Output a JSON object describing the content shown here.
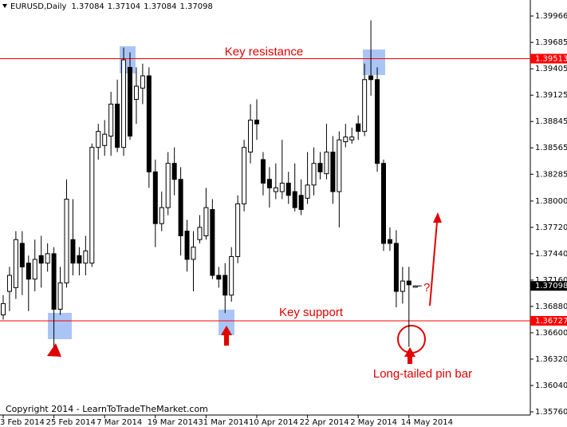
{
  "chart_data": {
    "type": "candlestick",
    "symbol": "EURUSD,Daily",
    "categories": [
      "3 Feb 2014",
      null,
      null,
      null,
      null,
      null,
      null,
      null,
      "25 Feb 2014",
      null,
      null,
      null,
      null,
      null,
      null,
      null,
      "7 Mar 2014",
      null,
      null,
      null,
      null,
      null,
      null,
      null,
      "19 Mar 2014",
      null,
      null,
      null,
      null,
      null,
      null,
      null,
      "31 Mar 2014",
      null,
      null,
      null,
      null,
      null,
      null,
      null,
      "10 Apr 2014",
      null,
      null,
      null,
      null,
      null,
      null,
      null,
      "22 Apr 2014",
      null,
      null,
      null,
      null,
      null,
      null,
      null,
      "2 May 2014",
      null,
      null,
      null,
      null,
      null,
      null,
      null,
      "14 May 2014",
      null
    ],
    "ohlc": [
      [
        1.3679,
        1.37,
        1.3674,
        1.3691
      ],
      [
        1.3704,
        1.373,
        1.3683,
        1.3721
      ],
      [
        1.3708,
        1.3768,
        1.3696,
        1.3759
      ],
      [
        1.3755,
        1.3768,
        1.37,
        1.373
      ],
      [
        1.3734,
        1.3742,
        1.3683,
        1.3717
      ],
      [
        1.3717,
        1.3759,
        1.3704,
        1.3738
      ],
      [
        1.3742,
        1.3763,
        1.3708,
        1.3734
      ],
      [
        1.3734,
        1.3755,
        1.3725,
        1.3744
      ],
      [
        1.3744,
        1.3751,
        1.3645,
        1.3685
      ],
      [
        1.3685,
        1.373,
        1.3679,
        1.3713
      ],
      [
        1.3713,
        1.3823,
        1.3708,
        1.3802
      ],
      [
        1.3759,
        1.3802,
        1.3721,
        1.3734
      ],
      [
        1.3742,
        1.3751,
        1.3721,
        1.3734
      ],
      [
        1.3734,
        1.3763,
        1.3721,
        1.3747
      ],
      [
        1.3734,
        1.3861,
        1.373,
        1.3857
      ],
      [
        1.3857,
        1.3882,
        1.3844,
        1.3874
      ],
      [
        1.3859,
        1.3886,
        1.3848,
        1.3871
      ],
      [
        1.3869,
        1.3916,
        1.3848,
        1.3903
      ],
      [
        1.3903,
        1.3929,
        1.3852,
        1.3857
      ],
      [
        1.3857,
        1.3963,
        1.3848,
        1.395
      ],
      [
        1.3942,
        1.3958,
        1.3865,
        1.3869
      ],
      [
        1.3908,
        1.3942,
        1.3882,
        1.3922
      ],
      [
        1.392,
        1.3946,
        1.3903,
        1.3933
      ],
      [
        1.3933,
        1.3942,
        1.3814,
        1.3831
      ],
      [
        1.3831,
        1.3844,
        1.3751,
        1.3776
      ],
      [
        1.3776,
        1.381,
        1.3768,
        1.3793
      ],
      [
        1.3793,
        1.3852,
        1.3785,
        1.384
      ],
      [
        1.384,
        1.3857,
        1.3806,
        1.3823
      ],
      [
        1.3823,
        1.3836,
        1.3742,
        1.3763
      ],
      [
        1.3768,
        1.378,
        1.3725,
        1.3738
      ],
      [
        1.3738,
        1.3768,
        1.3704,
        1.3751
      ],
      [
        1.3759,
        1.3785,
        1.3755,
        1.3772
      ],
      [
        1.3763,
        1.3814,
        1.3759,
        1.3793
      ],
      [
        1.3791,
        1.3802,
        1.3717,
        1.3721
      ],
      [
        1.3721,
        1.373,
        1.3708,
        1.3717
      ],
      [
        1.3721,
        1.3734,
        1.3681,
        1.37
      ],
      [
        1.37,
        1.3751,
        1.3693,
        1.3741
      ],
      [
        1.3741,
        1.3806,
        1.3734,
        1.3797
      ],
      [
        1.3797,
        1.3865,
        1.3789,
        1.3857
      ],
      [
        1.3852,
        1.3903,
        1.384,
        1.3886
      ],
      [
        1.3886,
        1.3908,
        1.3865,
        1.3882
      ],
      [
        1.3844,
        1.3852,
        1.3806,
        1.3819
      ],
      [
        1.3823,
        1.3836,
        1.3793,
        1.3814
      ],
      [
        1.381,
        1.384,
        1.3802,
        1.3814
      ],
      [
        1.381,
        1.3865,
        1.3802,
        1.3819
      ],
      [
        1.3819,
        1.3831,
        1.3797,
        1.3806
      ],
      [
        1.381,
        1.384,
        1.3789,
        1.3793
      ],
      [
        1.3806,
        1.3823,
        1.3785,
        1.3791
      ],
      [
        1.3803,
        1.3852,
        1.3797,
        1.3817
      ],
      [
        1.3817,
        1.3857,
        1.3806,
        1.384
      ],
      [
        1.384,
        1.3852,
        1.3823,
        1.3831
      ],
      [
        1.3829,
        1.3882,
        1.3823,
        1.3852
      ],
      [
        1.3852,
        1.3869,
        1.3797,
        1.381
      ],
      [
        1.381,
        1.3874,
        1.3772,
        1.3865
      ],
      [
        1.3863,
        1.3882,
        1.3857,
        1.3868
      ],
      [
        1.3865,
        1.3878,
        1.3861,
        1.3868
      ],
      [
        1.3882,
        1.3891,
        1.3865,
        1.3874
      ],
      [
        1.3874,
        1.3946,
        1.3869,
        1.3929
      ],
      [
        1.3933,
        1.3992,
        1.3912,
        1.3929
      ],
      [
        1.3929,
        1.3942,
        1.3831,
        1.384
      ],
      [
        1.384,
        1.3844,
        1.3747,
        1.3755
      ],
      [
        1.3759,
        1.3772,
        1.3747,
        1.3755
      ],
      [
        1.3755,
        1.3769,
        1.3687,
        1.3704
      ],
      [
        1.3704,
        1.373,
        1.3691,
        1.3715
      ],
      [
        1.3715,
        1.373,
        1.3645,
        1.3711
      ],
      [
        1.37084,
        1.37104,
        1.37084,
        1.37098
      ]
    ],
    "ylim": [
      1.35726,
      1.40136
    ],
    "yticks": [
      1.39966,
      1.39685,
      1.39405,
      1.39125,
      1.38845,
      1.38565,
      1.38285,
      {
        "value": 1.38,
        "label": "1.38000"
      },
      {
        "value": 1.3772,
        "label": "1.37720"
      },
      {
        "value": 1.3744,
        "label": "1.37440"
      },
      {
        "value": 1.3716,
        "label": "1.37160"
      },
      {
        "value": 1.3688,
        "label": "1.36880"
      },
      {
        "value": 1.366,
        "label": "1.36600"
      },
      {
        "value": 1.3632,
        "label": "1.36320"
      },
      {
        "value": 1.3604,
        "label": "1.36040"
      },
      {
        "value": 1.3576,
        "label": "1.35760"
      }
    ],
    "levels": [
      {
        "value": 1.39513,
        "label": "Key resistance",
        "color": "#ff0000"
      },
      {
        "value": 1.36727,
        "label": "Key support",
        "color": "#ff0000"
      }
    ],
    "annotations": {
      "pin_bar": "Long-tailed pin bar",
      "question": "?",
      "copyright": "Copyright 2014 - LearnToTradeTheMarket.com"
    }
  }
}
